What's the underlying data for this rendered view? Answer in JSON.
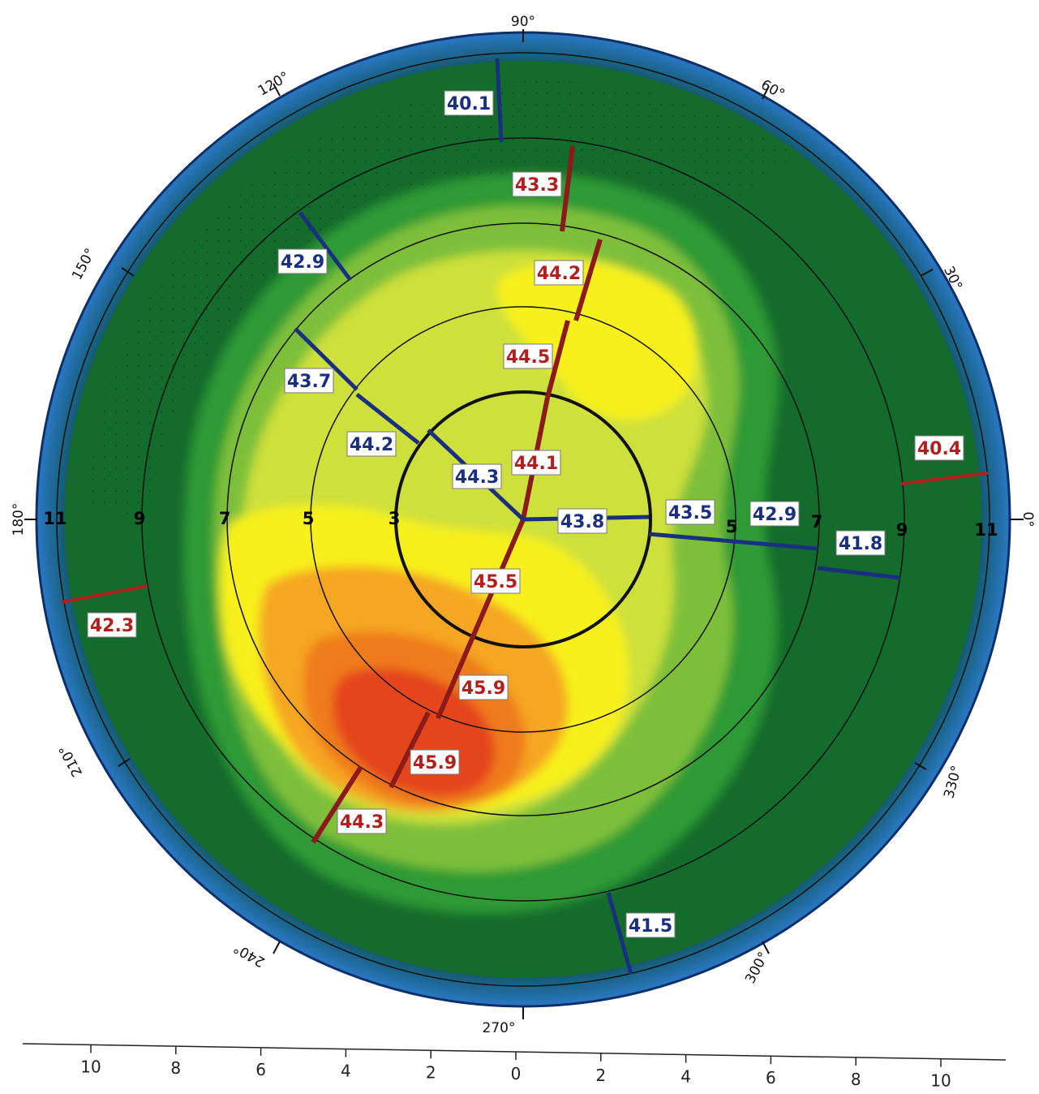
{
  "colors": {
    "blue": "#1b2f80",
    "red": "#b1201e",
    "rim_blue": "#1d5fa8",
    "dark_green": "#146c2c",
    "mid_green": "#2e9a35",
    "light_green": "#7dbf3a",
    "yellow_green": "#cde03a",
    "yellow": "#f7f01e",
    "orange": "#f5a623",
    "dark_orange": "#ee7c1c",
    "red_zone": "#e4441c"
  },
  "angle_labels": [
    {
      "deg": 0,
      "text": "0°"
    },
    {
      "deg": 30,
      "text": "30°"
    },
    {
      "deg": 60,
      "text": "60°"
    },
    {
      "deg": 90,
      "text": "90°"
    },
    {
      "deg": 120,
      "text": "120°"
    },
    {
      "deg": 150,
      "text": "150°"
    },
    {
      "deg": 180,
      "text": "180°"
    },
    {
      "deg": 210,
      "text": "210°"
    },
    {
      "deg": 240,
      "text": "240°"
    },
    {
      "deg": 270,
      "text": "270°"
    },
    {
      "deg": 300,
      "text": "300°"
    },
    {
      "deg": 330,
      "text": "330°"
    }
  ],
  "ring_labels_left": [
    "11",
    "9",
    "7",
    "5",
    "3"
  ],
  "ring_labels_right": [
    "5",
    "7",
    "9",
    "11"
  ],
  "values": [
    {
      "text": "40.1",
      "color": "blue"
    },
    {
      "text": "43.3",
      "color": "red"
    },
    {
      "text": "42.9",
      "color": "blue"
    },
    {
      "text": "44.2",
      "color": "red"
    },
    {
      "text": "44.5",
      "color": "red"
    },
    {
      "text": "43.7",
      "color": "blue"
    },
    {
      "text": "44.2",
      "color": "blue"
    },
    {
      "text": "44.3",
      "color": "blue"
    },
    {
      "text": "44.1",
      "color": "red"
    },
    {
      "text": "43.8",
      "color": "blue"
    },
    {
      "text": "43.5",
      "color": "blue"
    },
    {
      "text": "42.9",
      "color": "blue"
    },
    {
      "text": "41.8",
      "color": "blue"
    },
    {
      "text": "40.4",
      "color": "red"
    },
    {
      "text": "42.3",
      "color": "red"
    },
    {
      "text": "45.5",
      "color": "red"
    },
    {
      "text": "45.9",
      "color": "red"
    },
    {
      "text": "45.9",
      "color": "red"
    },
    {
      "text": "44.3",
      "color": "red"
    },
    {
      "text": "41.5",
      "color": "blue"
    }
  ],
  "scale_ticks": [
    "10",
    "8",
    "6",
    "4",
    "2",
    "0",
    "2",
    "4",
    "6",
    "8",
    "10"
  ]
}
